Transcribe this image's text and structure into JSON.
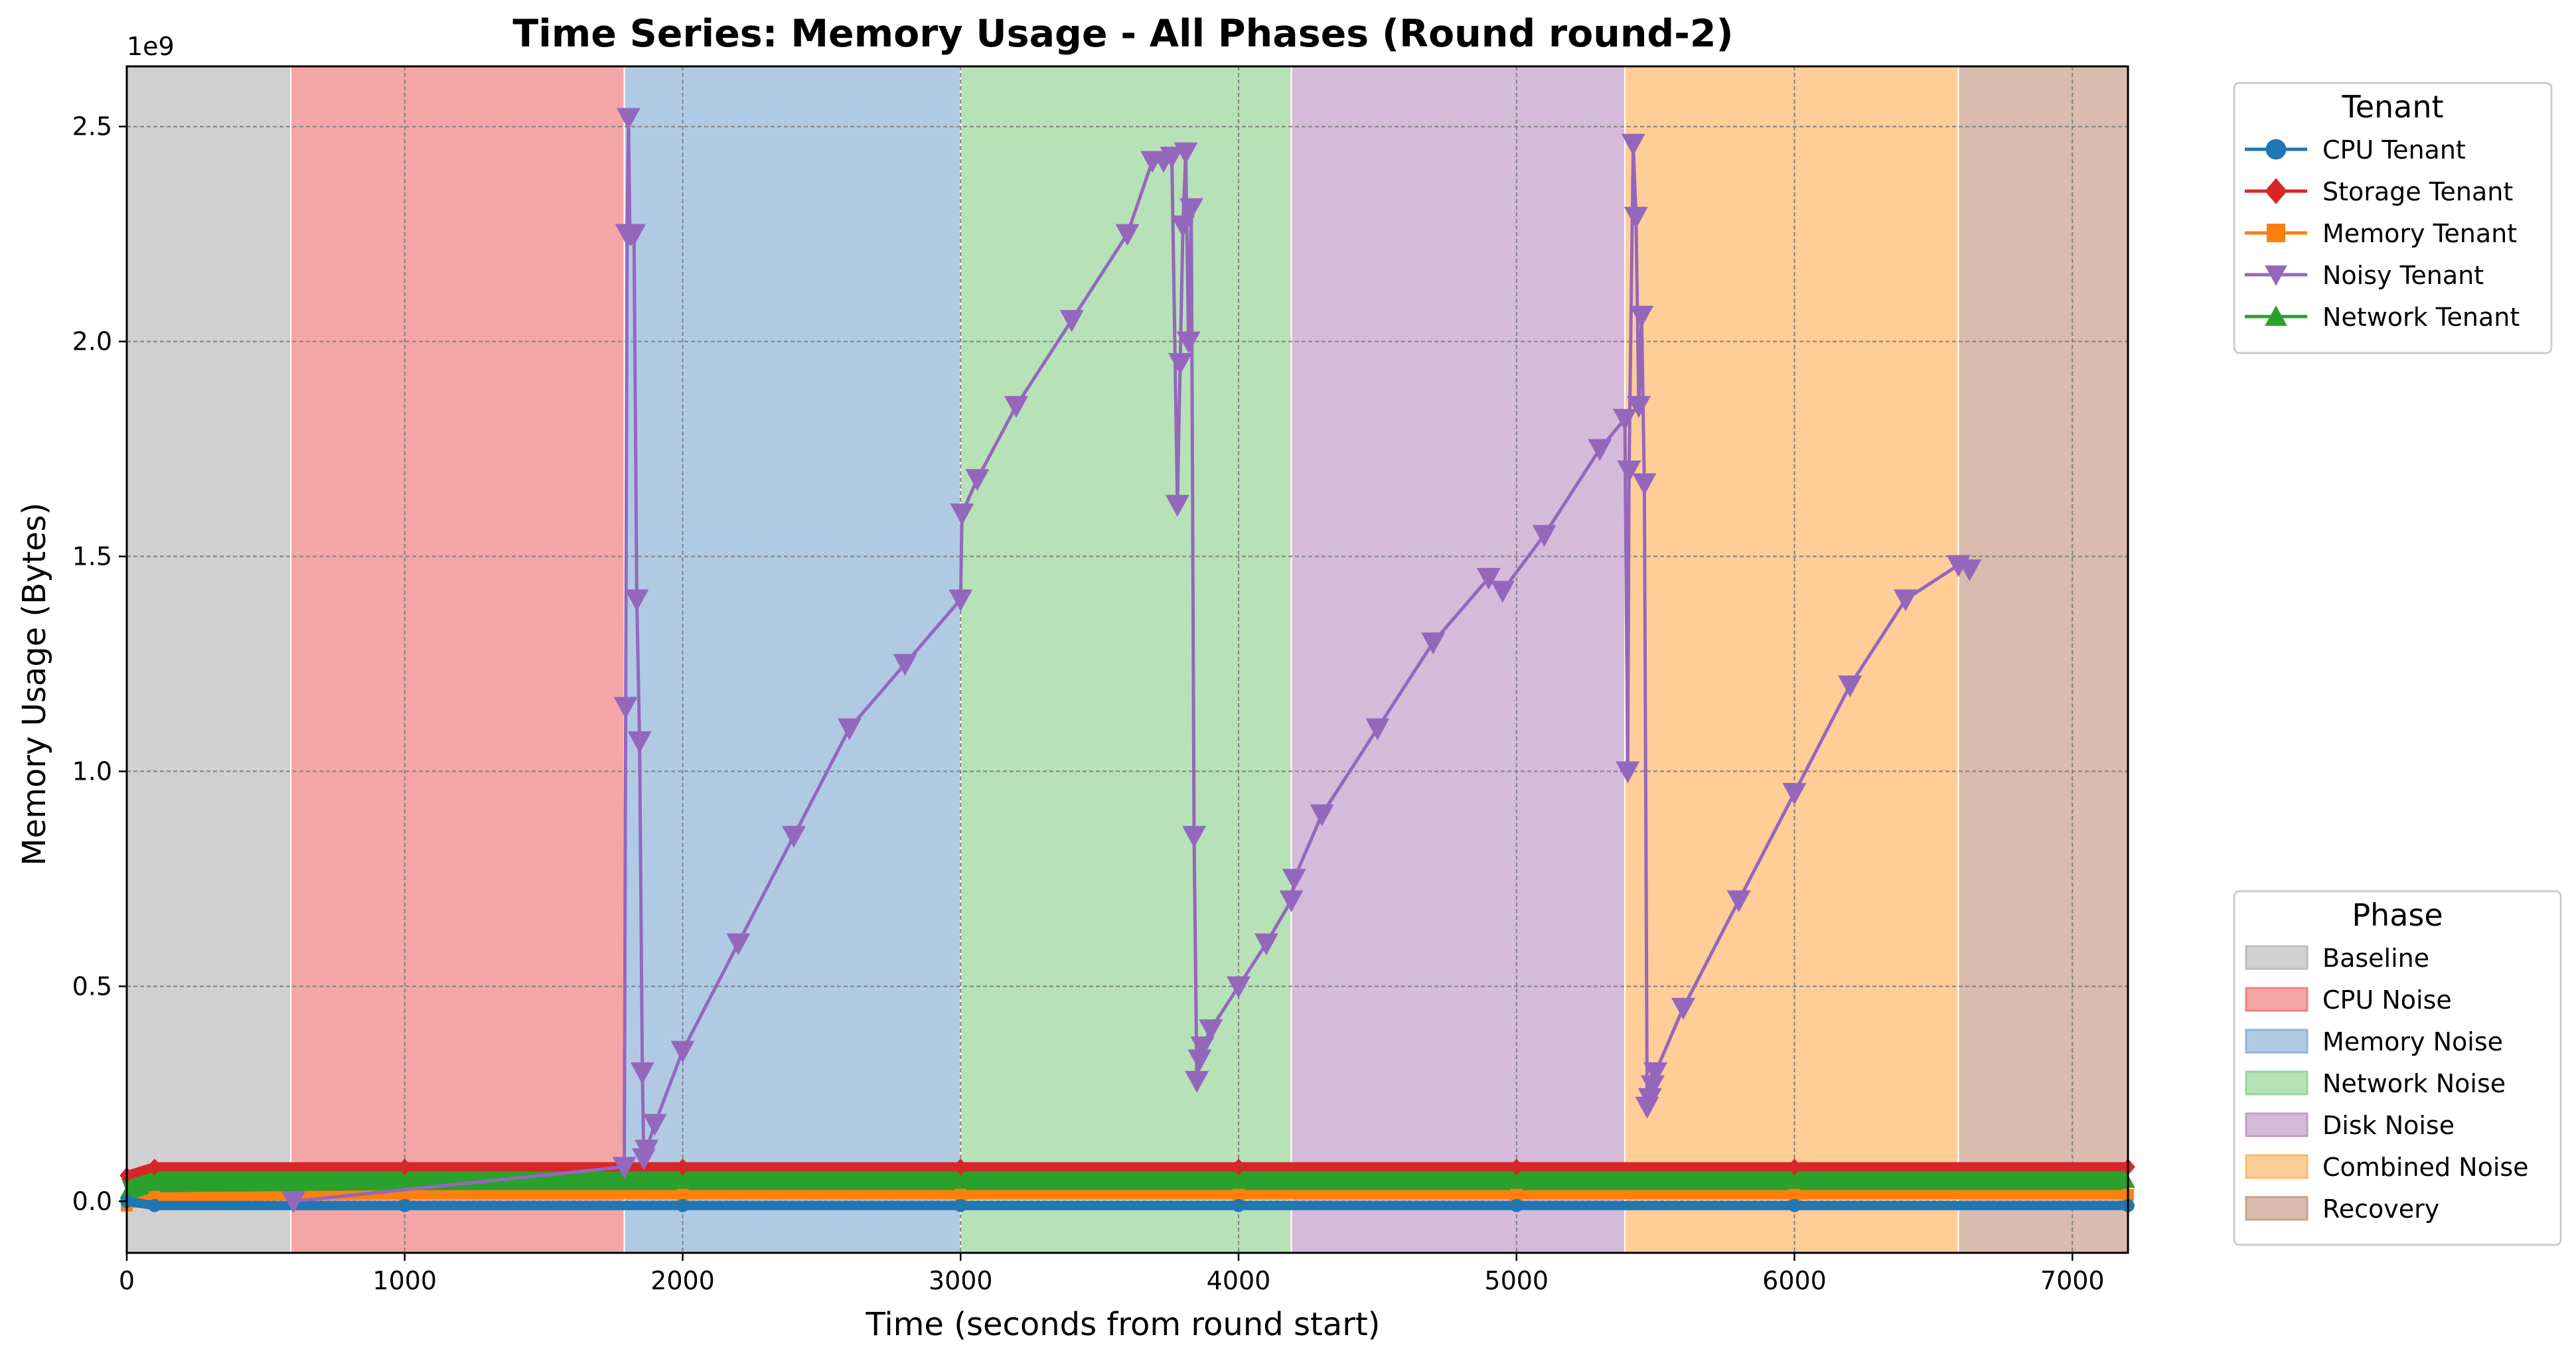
{
  "chart_data": {
    "type": "line",
    "title": "Time Series: Memory Usage - All Phases (Round round-2)",
    "xlabel": "Time (seconds from round start)",
    "ylabel": "Memory Usage (Bytes)",
    "y_offset_label": "1e9",
    "xlim": [
      0,
      7200
    ],
    "ylim": [
      -0.12,
      2.64
    ],
    "y_unit_multiplier": 1000000000,
    "x_ticks": [
      0,
      1000,
      2000,
      3000,
      4000,
      5000,
      6000,
      7000
    ],
    "x_tick_labels": [
      "0",
      "1000",
      "2000",
      "3000",
      "4000",
      "5000",
      "6000",
      "7000"
    ],
    "y_ticks": [
      0,
      0.5,
      1.0,
      1.5,
      2.0,
      2.5
    ],
    "y_tick_labels": [
      "0.0",
      "0.5",
      "1.0",
      "1.5",
      "2.0",
      "2.5"
    ],
    "grid": true,
    "phases": [
      {
        "name": "Baseline",
        "start": 0,
        "end": 590,
        "color": "#bdbdbd"
      },
      {
        "name": "CPU Noise",
        "start": 590,
        "end": 1790,
        "color": "#f08080"
      },
      {
        "name": "Memory Noise",
        "start": 1790,
        "end": 3000,
        "color": "#90b4d8"
      },
      {
        "name": "Network Noise",
        "start": 3000,
        "end": 4190,
        "color": "#98d698"
      },
      {
        "name": "Disk Noise",
        "start": 4190,
        "end": 5390,
        "color": "#c39ccb"
      },
      {
        "name": "Combined Noise",
        "start": 5390,
        "end": 6590,
        "color": "#ffb86b"
      },
      {
        "name": "Recovery",
        "start": 6590,
        "end": 7200,
        "color": "#c9a08a"
      }
    ],
    "series": [
      {
        "name": "CPU Tenant",
        "color": "#1f77b4",
        "marker": "circle",
        "x": [
          0,
          100,
          1000,
          2000,
          3000,
          4000,
          5000,
          6000,
          7200
        ],
        "y": [
          0.0,
          -0.01,
          -0.01,
          -0.01,
          -0.01,
          -0.01,
          -0.01,
          -0.01,
          -0.01
        ]
      },
      {
        "name": "Storage Tenant",
        "color": "#d62728",
        "marker": "diamond",
        "x": [
          0,
          100,
          1000,
          2000,
          3000,
          4000,
          5000,
          6000,
          7200
        ],
        "y": [
          0.06,
          0.08,
          0.08,
          0.08,
          0.08,
          0.08,
          0.08,
          0.08,
          0.08
        ]
      },
      {
        "name": "Memory Tenant",
        "color": "#ff7f0e",
        "marker": "square",
        "x": [
          0,
          100,
          1000,
          2000,
          3000,
          4000,
          5000,
          6000,
          7200
        ],
        "y": [
          -0.01,
          0.01,
          0.015,
          0.015,
          0.015,
          0.015,
          0.015,
          0.015,
          0.015
        ]
      },
      {
        "name": "Noisy Tenant",
        "color": "#9467bd",
        "marker": "triangle_down",
        "x": [
          600,
          1790,
          1795,
          1800,
          1805,
          1810,
          1815,
          1825,
          1835,
          1845,
          1855,
          1860,
          1870,
          1900,
          2000,
          2200,
          2400,
          2600,
          2800,
          3000,
          3005,
          3060,
          3200,
          3400,
          3600,
          3690,
          3730,
          3760,
          3780,
          3790,
          3800,
          3810,
          3820,
          3830,
          3840,
          3850,
          3860,
          3870,
          3900,
          4000,
          4100,
          4190,
          4200,
          4300,
          4500,
          4700,
          4900,
          4950,
          5100,
          5300,
          5390,
          5400,
          5405,
          5420,
          5430,
          5440,
          5450,
          5460,
          5470,
          5480,
          5490,
          5500,
          5600,
          5800,
          6000,
          6200,
          6400,
          6590,
          6630
        ],
        "y": [
          0.0,
          0.08,
          1.15,
          2.25,
          2.52,
          2.25,
          2.25,
          2.25,
          1.4,
          1.07,
          0.3,
          0.1,
          0.12,
          0.18,
          0.35,
          0.6,
          0.85,
          1.1,
          1.25,
          1.4,
          1.6,
          1.68,
          1.85,
          2.05,
          2.25,
          2.42,
          2.42,
          2.43,
          1.62,
          1.95,
          2.27,
          2.44,
          2.0,
          2.31,
          0.85,
          0.28,
          0.33,
          0.36,
          0.4,
          0.5,
          0.6,
          0.7,
          0.75,
          0.9,
          1.1,
          1.3,
          1.45,
          1.42,
          1.55,
          1.75,
          1.82,
          1.0,
          1.7,
          2.46,
          2.29,
          1.85,
          2.06,
          1.67,
          0.22,
          0.24,
          0.27,
          0.3,
          0.45,
          0.7,
          0.95,
          1.2,
          1.4,
          1.48,
          1.47
        ]
      },
      {
        "name": "Network Tenant",
        "color": "#2ca02c",
        "marker": "triangle_up",
        "x": [
          0,
          100,
          1000,
          2000,
          3000,
          4000,
          5000,
          6000,
          7200
        ],
        "y": [
          0.02,
          0.045,
          0.045,
          0.045,
          0.045,
          0.045,
          0.045,
          0.045,
          0.045
        ]
      }
    ],
    "legends": [
      {
        "title": "Tenant",
        "placement": "upper right outside"
      },
      {
        "title": "Phase",
        "placement": "lower right outside"
      }
    ]
  }
}
